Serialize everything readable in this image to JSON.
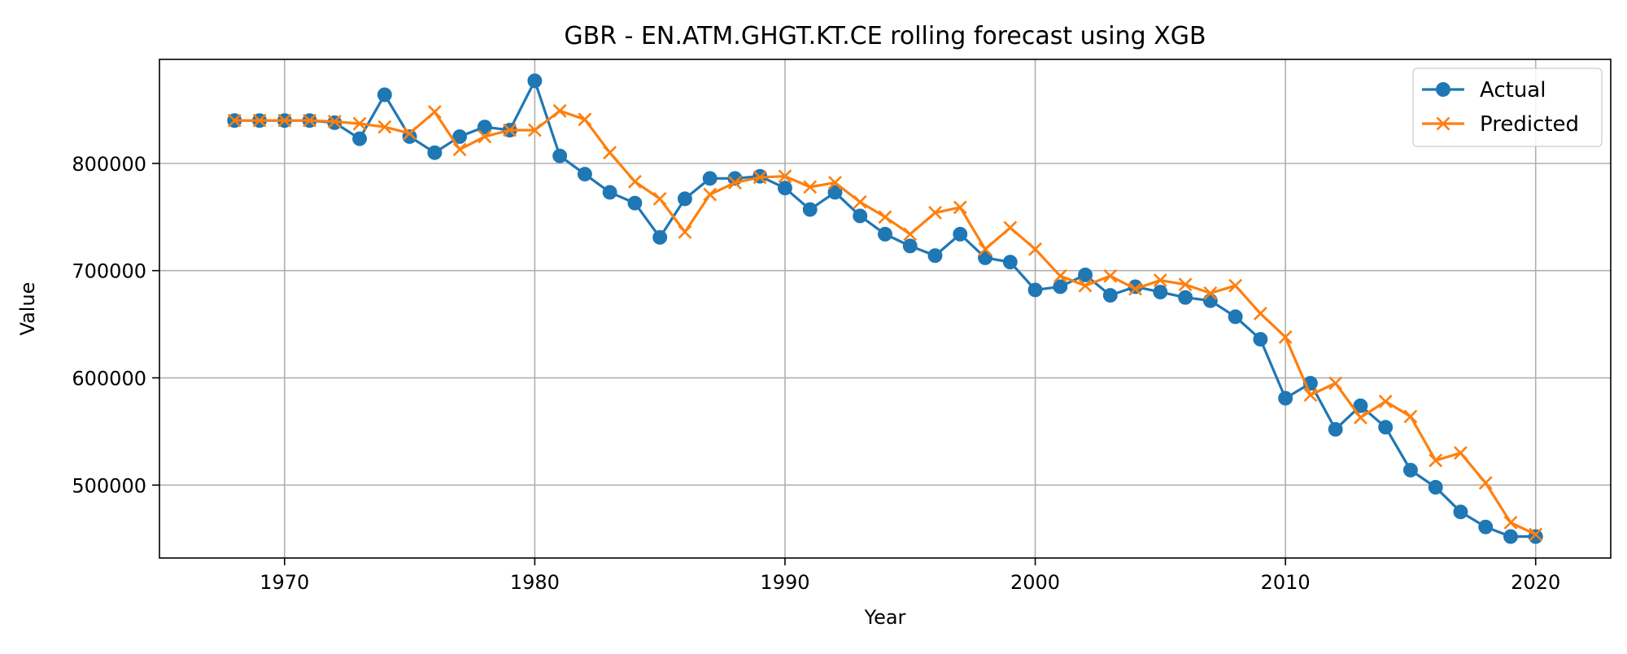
{
  "chart_data": {
    "type": "line",
    "title": "GBR - EN.ATM.GHGT.KT.CE rolling forecast using XGB",
    "xlabel": "Year",
    "ylabel": "Value",
    "xlim": [
      1965,
      2023
    ],
    "ylim": [
      432000,
      897000
    ],
    "x_ticks": [
      1970,
      1980,
      1990,
      2000,
      2010,
      2020
    ],
    "y_ticks": [
      500000,
      600000,
      700000,
      800000
    ],
    "grid": true,
    "legend": {
      "placement": "top-right"
    },
    "x": [
      1968,
      1969,
      1970,
      1971,
      1972,
      1973,
      1974,
      1975,
      1976,
      1977,
      1978,
      1979,
      1980,
      1981,
      1982,
      1983,
      1984,
      1985,
      1986,
      1987,
      1988,
      1989,
      1990,
      1991,
      1992,
      1993,
      1994,
      1995,
      1996,
      1997,
      1998,
      1999,
      2000,
      2001,
      2002,
      2003,
      2004,
      2005,
      2006,
      2007,
      2008,
      2009,
      2010,
      2011,
      2012,
      2013,
      2014,
      2015,
      2016,
      2017,
      2018,
      2019,
      2020
    ],
    "series": [
      {
        "name": "Actual",
        "color": "#1f77b4",
        "marker": "circle",
        "values": [
          840000,
          840000,
          840000,
          840000,
          838000,
          823000,
          864000,
          825000,
          810000,
          825000,
          834000,
          831000,
          877000,
          807000,
          790000,
          773000,
          763000,
          731000,
          767000,
          786000,
          786000,
          788000,
          777000,
          757000,
          773000,
          751000,
          734000,
          723000,
          714000,
          734000,
          712000,
          708000,
          682000,
          685000,
          696000,
          677000,
          685000,
          680000,
          675000,
          672000,
          657000,
          636000,
          581000,
          595000,
          552000,
          574000,
          554000,
          514000,
          498000,
          475000,
          461000,
          452000,
          452000
        ]
      },
      {
        "name": "Predicted",
        "color": "#ff7f0e",
        "marker": "x",
        "values": [
          840000,
          840000,
          840000,
          840000,
          839000,
          837000,
          834000,
          828000,
          848000,
          813000,
          825000,
          831000,
          831000,
          849000,
          841000,
          810000,
          783000,
          767000,
          736000,
          771000,
          782000,
          787000,
          788000,
          778000,
          782000,
          764000,
          750000,
          734000,
          754000,
          759000,
          720000,
          740000,
          720000,
          695000,
          686000,
          695000,
          683000,
          691000,
          687000,
          679000,
          686000,
          660000,
          638000,
          584000,
          595000,
          563000,
          578000,
          564000,
          523000,
          530000,
          502000,
          465000,
          454000
        ]
      }
    ]
  }
}
